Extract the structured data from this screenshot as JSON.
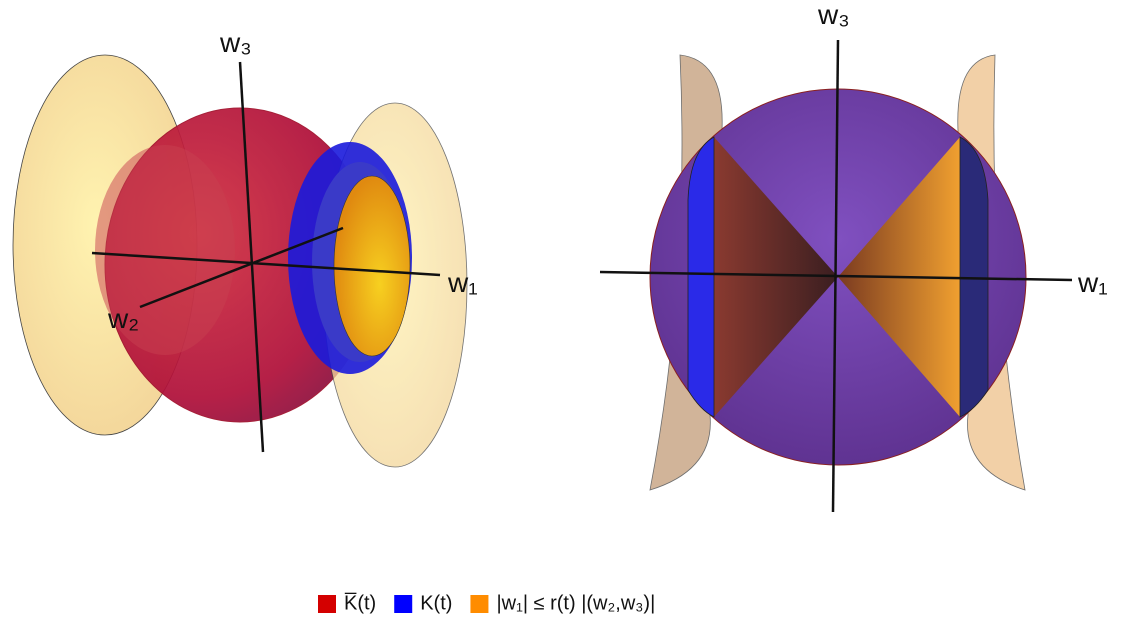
{
  "left_plot": {
    "axis_labels": {
      "w3": "w₃",
      "w1": "w₁",
      "w2": "w₂"
    }
  },
  "right_plot": {
    "axis_labels": {
      "w3": "w₃",
      "w1": "w₁"
    }
  },
  "legend": {
    "items": [
      {
        "label": "K̅(t)",
        "color": "#d40000"
      },
      {
        "label": "K(t)",
        "color": "#0000ff"
      },
      {
        "label": "|w₁| ≤ r(t) |(w₂,w₃)|",
        "color": "#ff8c00"
      }
    ]
  }
}
